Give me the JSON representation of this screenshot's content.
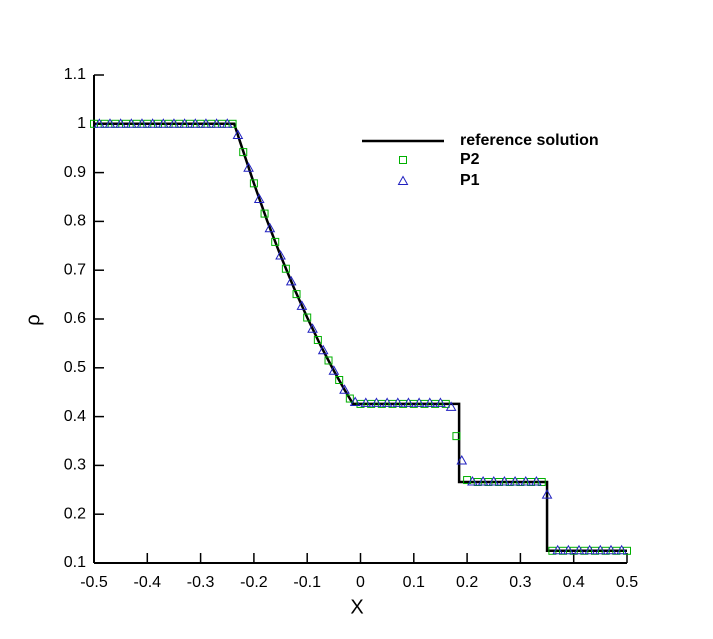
{
  "chart_data": {
    "type": "line",
    "xlabel": "X",
    "ylabel": "ρ",
    "xlim": [
      -0.5,
      0.5
    ],
    "ylim": [
      0.1,
      1.1
    ],
    "xticks": [
      -0.5,
      -0.4,
      -0.3,
      -0.2,
      -0.1,
      0,
      0.1,
      0.2,
      0.3,
      0.4,
      0.5
    ],
    "yticks": [
      0.1,
      0.2,
      0.3,
      0.4,
      0.5,
      0.6,
      0.7,
      0.8,
      0.9,
      1,
      1.1
    ],
    "legend": "upper right",
    "series": [
      {
        "name": "reference solution",
        "color": "#000000",
        "marker": "line",
        "x": [
          -0.5,
          -0.237,
          -0.225,
          -0.2,
          -0.175,
          -0.15,
          -0.125,
          -0.1,
          -0.075,
          -0.05,
          -0.03,
          -0.014,
          0.185,
          0.185,
          0.35,
          0.35,
          0.5
        ],
        "values": [
          1,
          1,
          0.96,
          0.878,
          0.801,
          0.73,
          0.664,
          0.603,
          0.546,
          0.494,
          0.455,
          0.426,
          0.426,
          0.266,
          0.266,
          0.125,
          0.125
        ]
      },
      {
        "name": "P2",
        "color": "#00b000",
        "marker": "square",
        "x": [
          -0.5,
          -0.48,
          -0.46,
          -0.44,
          -0.42,
          -0.4,
          -0.38,
          -0.36,
          -0.34,
          -0.32,
          -0.3,
          -0.28,
          -0.26,
          -0.24,
          -0.22,
          -0.2,
          -0.18,
          -0.16,
          -0.14,
          -0.12,
          -0.1,
          -0.08,
          -0.06,
          -0.04,
          -0.02,
          0,
          0.02,
          0.04,
          0.06,
          0.08,
          0.1,
          0.12,
          0.14,
          0.16,
          0.18,
          0.2,
          0.22,
          0.24,
          0.26,
          0.28,
          0.3,
          0.32,
          0.34,
          0.36,
          0.38,
          0.4,
          0.42,
          0.44,
          0.46,
          0.48,
          0.5
        ],
        "values": [
          1,
          1,
          1,
          1,
          1,
          1,
          1,
          1,
          1,
          1,
          1,
          1,
          1,
          1,
          0.942,
          0.878,
          0.816,
          0.758,
          0.703,
          0.651,
          0.603,
          0.557,
          0.515,
          0.475,
          0.437,
          0.426,
          0.426,
          0.426,
          0.426,
          0.426,
          0.426,
          0.426,
          0.426,
          0.426,
          0.36,
          0.27,
          0.266,
          0.266,
          0.266,
          0.266,
          0.266,
          0.266,
          0.266,
          0.125,
          0.125,
          0.125,
          0.125,
          0.125,
          0.125,
          0.125,
          0.125
        ]
      },
      {
        "name": "P1",
        "color": "#2020c0",
        "marker": "triangle",
        "x": [
          -0.49,
          -0.47,
          -0.45,
          -0.43,
          -0.41,
          -0.39,
          -0.37,
          -0.35,
          -0.33,
          -0.31,
          -0.29,
          -0.27,
          -0.25,
          -0.23,
          -0.21,
          -0.19,
          -0.17,
          -0.15,
          -0.13,
          -0.11,
          -0.09,
          -0.07,
          -0.05,
          -0.03,
          -0.01,
          0.01,
          0.03,
          0.05,
          0.07,
          0.09,
          0.11,
          0.13,
          0.15,
          0.17,
          0.19,
          0.21,
          0.23,
          0.25,
          0.27,
          0.29,
          0.31,
          0.33,
          0.35,
          0.37,
          0.39,
          0.41,
          0.43,
          0.45,
          0.47,
          0.49
        ],
        "values": [
          1,
          1,
          1,
          1,
          1,
          1,
          1,
          1,
          1,
          1,
          1,
          1,
          1,
          0.977,
          0.91,
          0.846,
          0.786,
          0.73,
          0.677,
          0.627,
          0.58,
          0.536,
          0.494,
          0.455,
          0.43,
          0.428,
          0.428,
          0.428,
          0.428,
          0.428,
          0.428,
          0.428,
          0.428,
          0.42,
          0.31,
          0.267,
          0.267,
          0.267,
          0.267,
          0.267,
          0.267,
          0.267,
          0.24,
          0.126,
          0.126,
          0.126,
          0.126,
          0.126,
          0.126,
          0.126
        ]
      }
    ]
  }
}
